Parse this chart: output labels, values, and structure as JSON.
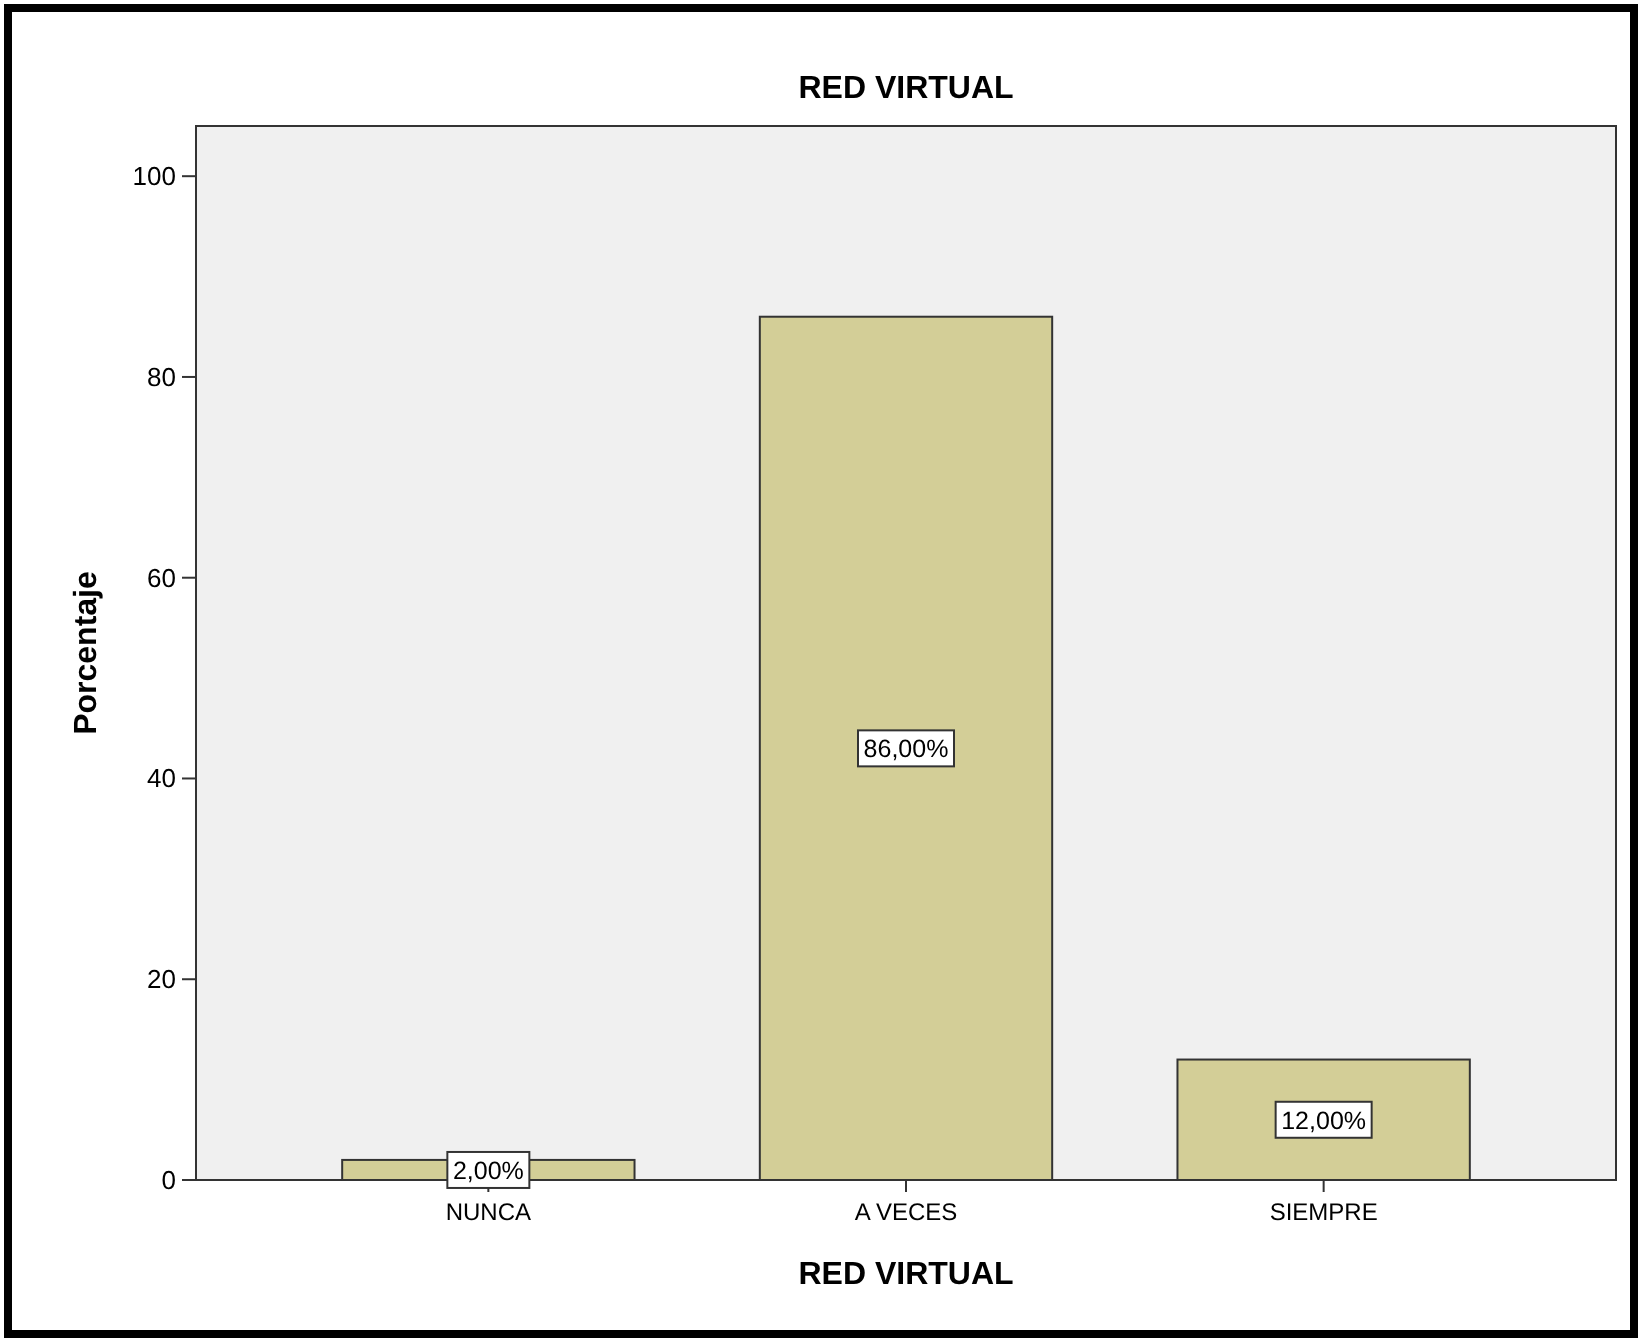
{
  "chart_data": {
    "type": "bar",
    "title": "RED VIRTUAL",
    "xlabel": "RED VIRTUAL",
    "ylabel": "Porcentaje",
    "categories": [
      "NUNCA",
      "A VECES",
      "SIEMPRE"
    ],
    "values": [
      2,
      86,
      12
    ],
    "value_labels": [
      "2,00%",
      "86,00%",
      "12,00%"
    ],
    "color": "#d3ce97",
    "ylim": [
      0,
      105
    ],
    "yticks": [
      0,
      20,
      40,
      60,
      80,
      100
    ],
    "grid": false
  }
}
